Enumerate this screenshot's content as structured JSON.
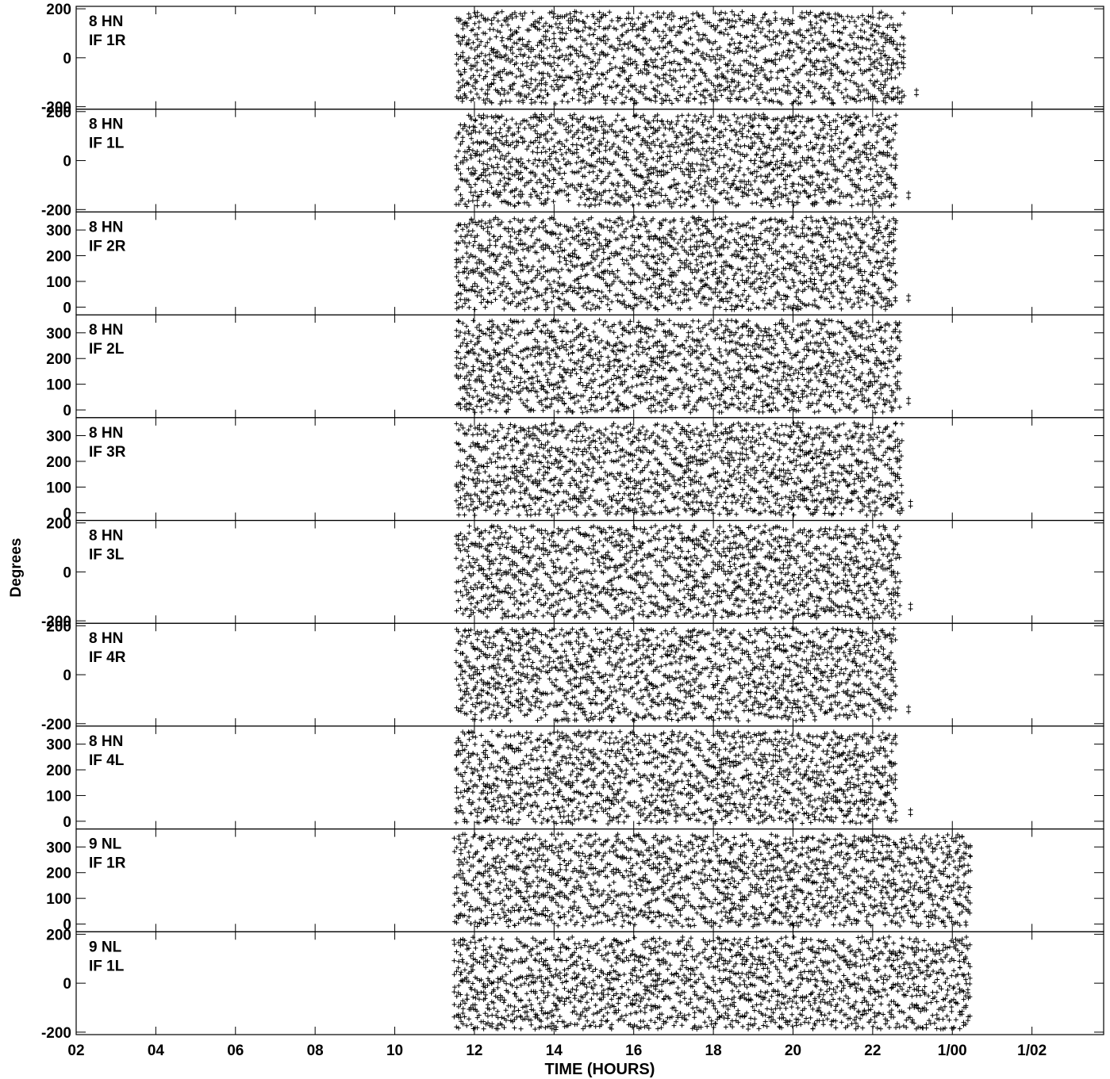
{
  "chart_data": {
    "type": "scatter",
    "xlabel": "TIME (HOURS)",
    "ylabel": "Degrees",
    "x_axis": {
      "min": 2.0,
      "max": 27.8,
      "ticks": [
        {
          "value": 2,
          "label": "02"
        },
        {
          "value": 4,
          "label": "04"
        },
        {
          "value": 6,
          "label": "06"
        },
        {
          "value": 8,
          "label": "08"
        },
        {
          "value": 10,
          "label": "10"
        },
        {
          "value": 12,
          "label": "12"
        },
        {
          "value": 14,
          "label": "14"
        },
        {
          "value": 16,
          "label": "16"
        },
        {
          "value": 18,
          "label": "18"
        },
        {
          "value": 20,
          "label": "20"
        },
        {
          "value": 22,
          "label": "22"
        },
        {
          "value": 24,
          "label": "1/00"
        },
        {
          "value": 26,
          "label": "1/02"
        }
      ]
    },
    "marker": "+",
    "grid": true,
    "panels": [
      {
        "baseline": "8 HN",
        "if_label": "IF 1R",
        "ylim": [
          -210,
          210
        ],
        "yticks": [
          200,
          0,
          -200
        ],
        "t_start": 11.55,
        "t_end": 22.8,
        "tail": [
          23.1
        ]
      },
      {
        "baseline": "8 HN",
        "if_label": "IF 1L",
        "ylim": [
          -210,
          210
        ],
        "yticks": [
          200,
          0,
          -200
        ],
        "t_start": 11.55,
        "t_end": 22.6,
        "tail": [
          22.9
        ]
      },
      {
        "baseline": "8 HN",
        "if_label": "IF 2R",
        "ylim": [
          -30,
          370
        ],
        "yticks": [
          300,
          200,
          100,
          0
        ],
        "t_start": 11.55,
        "t_end": 22.6,
        "tail": [
          22.9
        ]
      },
      {
        "baseline": "8 HN",
        "if_label": "IF 2L",
        "ylim": [
          -30,
          370
        ],
        "yticks": [
          300,
          200,
          100,
          0
        ],
        "t_start": 11.55,
        "t_end": 22.7,
        "tail": [
          22.9
        ]
      },
      {
        "baseline": "8 HN",
        "if_label": "IF 3R",
        "ylim": [
          -30,
          370
        ],
        "yticks": [
          300,
          200,
          100,
          0
        ],
        "t_start": 11.55,
        "t_end": 22.75,
        "tail": [
          22.95
        ]
      },
      {
        "baseline": "8 HN",
        "if_label": "IF 3L",
        "ylim": [
          -210,
          210
        ],
        "yticks": [
          200,
          0,
          -200
        ],
        "t_start": 11.55,
        "t_end": 22.7,
        "tail": [
          22.95
        ]
      },
      {
        "baseline": "8 HN",
        "if_label": "IF 4R",
        "ylim": [
          -210,
          210
        ],
        "yticks": [
          200,
          0,
          -200
        ],
        "t_start": 11.55,
        "t_end": 22.6,
        "tail": [
          22.9
        ]
      },
      {
        "baseline": "8 HN",
        "if_label": "IF 4L",
        "ylim": [
          -30,
          370
        ],
        "yticks": [
          300,
          200,
          100,
          0
        ],
        "t_start": 11.55,
        "t_end": 22.6,
        "tail": [
          22.95
        ]
      },
      {
        "baseline": "9 NL",
        "if_label": "IF 1R",
        "ylim": [
          -30,
          370
        ],
        "yticks": [
          300,
          200,
          100,
          0
        ],
        "t_start": 11.5,
        "t_end": 24.45,
        "tail": []
      },
      {
        "baseline": "9 NL",
        "if_label": "IF 1L",
        "ylim": [
          -210,
          210
        ],
        "yticks": [
          200,
          0,
          -200
        ],
        "t_start": 11.5,
        "t_end": 24.45,
        "tail": []
      }
    ]
  }
}
